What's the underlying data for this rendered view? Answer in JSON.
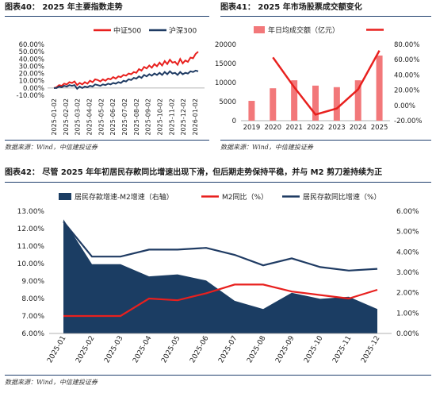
{
  "panels": {
    "p40": {
      "title": "图表40：  2025 年主要指数走势",
      "source": "数据来源：Wind，中信建投证券"
    },
    "p41": {
      "title": "图表41：  2025 年市场股票成交额变化",
      "source": "数据来源：Wind，中信建投证券"
    },
    "p42": {
      "title": "图表42：  尽管 2025 年年初居民存款同比增速出现下滑，但后期走势保持平稳，并与 M2 剪刀差持续为正",
      "source": "数据来源：Wind，中信建投证券"
    }
  },
  "colors": {
    "red": "#e8201e",
    "navy": "#1f3b63",
    "pink": "#f2787a",
    "area": "#1b3d63"
  },
  "chart_data": [
    {
      "type": "line",
      "title": "",
      "x_ticks": [
        "2025-01-02",
        "2025-02-02",
        "2025-03-02",
        "2025-04-02",
        "2025-05-02",
        "2025-06-02",
        "2025-07-02",
        "2025-08-02",
        "2025-09-02",
        "2025-10-02",
        "2025-11-02",
        "2025-12-02",
        "2026-01-02"
      ],
      "y_ticks": [
        "-10.00%",
        "0.00%",
        "10.00%",
        "20.00%",
        "30.00%",
        "40.00%",
        "50.00%",
        "60.00%"
      ],
      "ylim": [
        -10,
        60
      ],
      "legend": "top",
      "series": [
        {
          "name": "中证500",
          "color": "#e8201e",
          "values": [
            0,
            1,
            4,
            3,
            6,
            5,
            8,
            7,
            9,
            4,
            7,
            5,
            8,
            6,
            10,
            8,
            12,
            11,
            9,
            12,
            10,
            13,
            12,
            15,
            13,
            16,
            15,
            18,
            17,
            20,
            19,
            22,
            21,
            26,
            24,
            29,
            27,
            31,
            28,
            33,
            30,
            35,
            31,
            37,
            33,
            39,
            35,
            36,
            32,
            40,
            34,
            38,
            36,
            42,
            41,
            47,
            50
          ]
        },
        {
          "name": "沪深300",
          "color": "#1f3b63",
          "values": [
            0,
            0,
            2,
            1,
            3,
            2,
            4,
            3,
            4,
            -1,
            2,
            0,
            2,
            1,
            3,
            2,
            5,
            4,
            3,
            5,
            4,
            6,
            5,
            7,
            6,
            8,
            7,
            10,
            9,
            12,
            11,
            14,
            13,
            16,
            14,
            18,
            16,
            19,
            17,
            20,
            18,
            21,
            18,
            22,
            19,
            23,
            20,
            21,
            18,
            22,
            19,
            21,
            20,
            23,
            22,
            24,
            23
          ]
        }
      ]
    },
    {
      "type": "bar",
      "title": "",
      "categories": [
        "2019",
        "2020",
        "2021",
        "2022",
        "2023",
        "2024",
        "2025"
      ],
      "y_ticks": [
        "0",
        "5000",
        "10000",
        "15000",
        "20000"
      ],
      "y2_ticks": [
        "-20.00%",
        "0.00%",
        "20.00%",
        "40.00%",
        "60.00%",
        "80.00%"
      ],
      "ylim": [
        0,
        20000
      ],
      "y2lim": [
        -20,
        80
      ],
      "legend": "top",
      "series": [
        {
          "name": "年日均成交额（亿元）",
          "type": "bar",
          "color": "#f2787a",
          "axis": "left",
          "values": [
            5200,
            8500,
            10600,
            9200,
            8800,
            10600,
            17100
          ]
        },
        {
          "name": "",
          "type": "line",
          "color": "#e8201e",
          "axis": "right",
          "values": [
            null,
            63,
            24,
            -12,
            -4,
            21,
            72
          ]
        }
      ]
    },
    {
      "type": "line",
      "title": "",
      "categories": [
        "2025-01",
        "2025-02",
        "2025-03",
        "2025-04",
        "2025-05",
        "2025-06",
        "2025-07",
        "2025-08",
        "2025-09",
        "2025-10",
        "2025-11",
        "2025-12"
      ],
      "y_ticks": [
        "6.00%",
        "7.00%",
        "8.00%",
        "9.00%",
        "10.00%",
        "11.00%",
        "12.00%",
        "13.00%"
      ],
      "y2_ticks": [
        "0.00%",
        "1.00%",
        "2.00%",
        "3.00%",
        "4.00%",
        "5.00%",
        "6.00%"
      ],
      "ylim": [
        6,
        13
      ],
      "y2lim": [
        0,
        6
      ],
      "legend": "top",
      "series": [
        {
          "name": "居民存款增速-M2增速（右轴）",
          "type": "area",
          "color": "#1b3d63",
          "axis": "right",
          "values": [
            5.6,
            3.4,
            3.4,
            2.8,
            2.9,
            2.6,
            1.6,
            1.2,
            2.0,
            1.7,
            1.8,
            1.2
          ]
        },
        {
          "name": "M2同比（%）",
          "type": "line",
          "color": "#e8201e",
          "axis": "left",
          "values": [
            7.0,
            7.0,
            7.0,
            8.0,
            7.9,
            8.3,
            8.8,
            8.8,
            8.4,
            8.2,
            8.0,
            8.5
          ]
        },
        {
          "name": "居民存款同比增速（%）",
          "type": "line",
          "color": "#1f3b63",
          "axis": "left",
          "values": [
            12.4,
            10.4,
            10.4,
            10.8,
            10.8,
            10.9,
            10.5,
            9.9,
            10.3,
            9.8,
            9.6,
            9.7
          ]
        }
      ]
    }
  ]
}
